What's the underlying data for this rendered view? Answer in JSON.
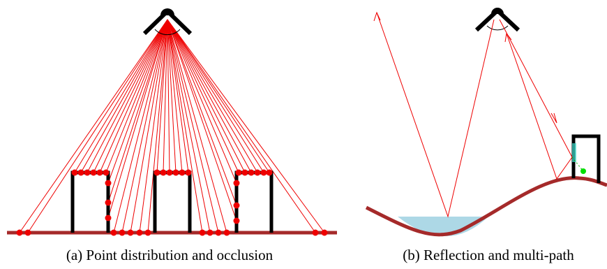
{
  "captions": {
    "a": "(a) Point distribution and occlusion",
    "b": "(b) Reflection and multi-path"
  }
}
